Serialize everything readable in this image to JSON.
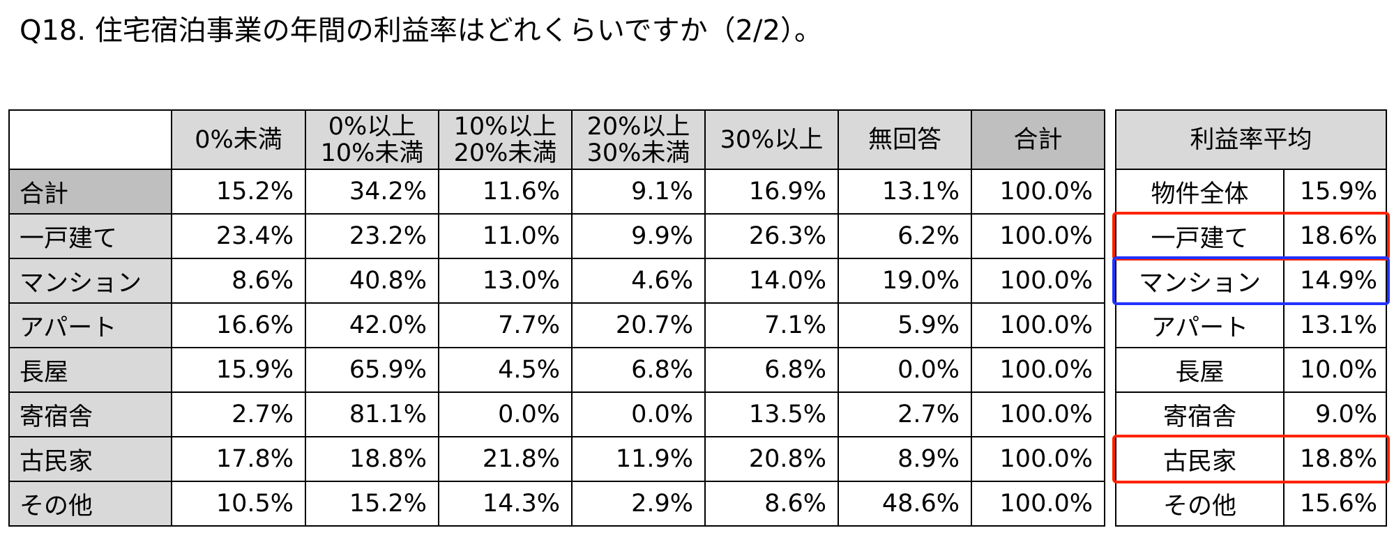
{
  "title": "Q18. 住宅宿泊事業の年間の利益率はどれくらいですか（2/2）。",
  "main_table": {
    "headers": [
      "",
      "0%未満",
      "0%以上\n10%未満",
      "10%以上\n20%未満",
      "20%以上\n30%未満",
      "30%以上",
      "無回答",
      "合計"
    ],
    "rows": [
      {
        "label": "合計",
        "values": [
          "15.2%",
          "34.2%",
          "11.6%",
          "9.1%",
          "16.9%",
          "13.1%",
          "100.0%"
        ]
      },
      {
        "label": "一戸建て",
        "values": [
          "23.4%",
          "23.2%",
          "11.0%",
          "9.9%",
          "26.3%",
          "6.2%",
          "100.0%"
        ]
      },
      {
        "label": "マンション",
        "values": [
          "8.6%",
          "40.8%",
          "13.0%",
          "4.6%",
          "14.0%",
          "19.0%",
          "100.0%"
        ]
      },
      {
        "label": "アパート",
        "values": [
          "16.6%",
          "42.0%",
          "7.7%",
          "20.7%",
          "7.1%",
          "5.9%",
          "100.0%"
        ]
      },
      {
        "label": "長屋",
        "values": [
          "15.9%",
          "65.9%",
          "4.5%",
          "6.8%",
          "6.8%",
          "0.0%",
          "100.0%"
        ]
      },
      {
        "label": "寄宿舎",
        "values": [
          "2.7%",
          "81.1%",
          "0.0%",
          "0.0%",
          "13.5%",
          "2.7%",
          "100.0%"
        ]
      },
      {
        "label": "古民家",
        "values": [
          "17.8%",
          "18.8%",
          "21.8%",
          "11.9%",
          "20.8%",
          "8.9%",
          "100.0%"
        ]
      },
      {
        "label": "その他",
        "values": [
          "10.5%",
          "15.2%",
          "14.3%",
          "2.9%",
          "8.6%",
          "48.6%",
          "100.0%"
        ]
      }
    ]
  },
  "side_table": {
    "header": "利益率平均",
    "rows": [
      {
        "label": "物件全体",
        "value": "15.9%"
      },
      {
        "label": "一戸建て",
        "value": "18.6%"
      },
      {
        "label": "マンション",
        "value": "14.9%"
      },
      {
        "label": "アパート",
        "value": "13.1%"
      },
      {
        "label": "長屋",
        "value": "10.0%"
      },
      {
        "label": "寄宿舎",
        "value": "9.0%"
      },
      {
        "label": "古民家",
        "value": "18.8%"
      },
      {
        "label": "その他",
        "value": "15.6%"
      }
    ]
  },
  "highlights": [
    {
      "row": "一戸建て",
      "color": "#ff2200"
    },
    {
      "row": "マンション",
      "color": "#2233ff"
    },
    {
      "row": "古民家",
      "color": "#ff2200"
    }
  ]
}
